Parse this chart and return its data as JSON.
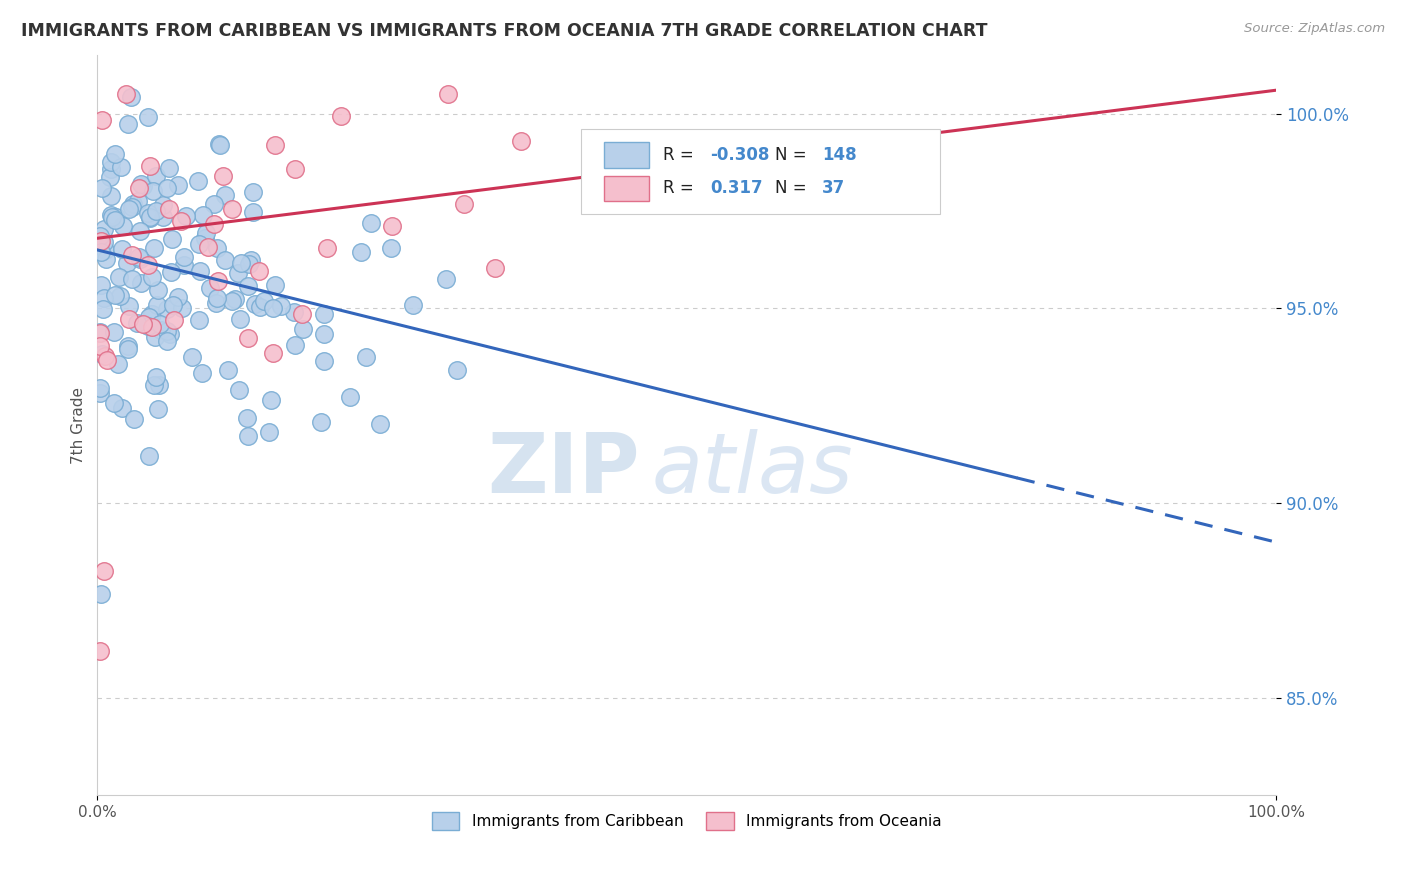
{
  "title": "IMMIGRANTS FROM CARIBBEAN VS IMMIGRANTS FROM OCEANIA 7TH GRADE CORRELATION CHART",
  "source": "Source: ZipAtlas.com",
  "ylabel": "7th Grade",
  "xlim": [
    0.0,
    1.0
  ],
  "ylim": [
    0.825,
    1.015
  ],
  "yticks": [
    0.85,
    0.9,
    0.95,
    1.0
  ],
  "ytick_labels": [
    "85.0%",
    "90.0%",
    "95.0%",
    "100.0%"
  ],
  "blue_R": -0.308,
  "blue_N": 148,
  "pink_R": 0.317,
  "pink_N": 37,
  "blue_color": "#b8d0ea",
  "blue_edge": "#7aadd4",
  "pink_color": "#f5bfcd",
  "pink_edge": "#e0708a",
  "blue_line_color": "#3366bb",
  "pink_line_color": "#cc3355",
  "legend_label_blue": "Immigrants from Caribbean",
  "legend_label_pink": "Immigrants from Oceania",
  "watermark_zip": "ZIP",
  "watermark_atlas": "atlas",
  "background_color": "#ffffff",
  "grid_color": "#cccccc",
  "blue_intercept": 0.965,
  "blue_slope": -0.075,
  "pink_intercept": 0.968,
  "pink_slope": 0.038
}
